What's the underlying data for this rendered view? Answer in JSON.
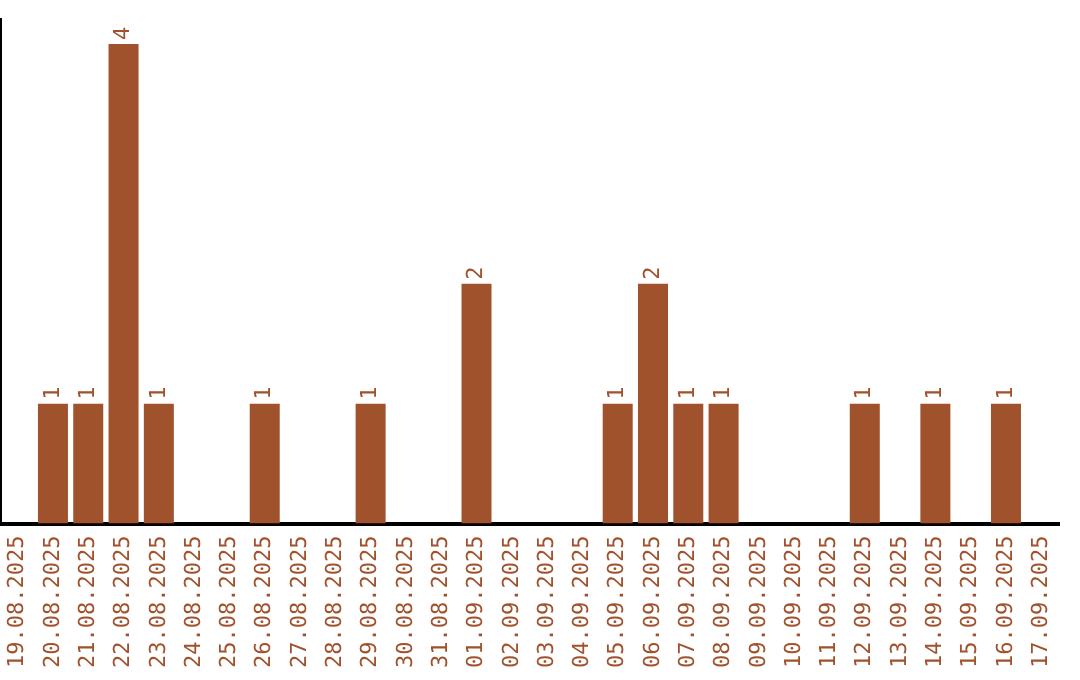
{
  "chart_data": {
    "type": "bar",
    "categories": [
      "19.08.2025",
      "20.08.2025",
      "21.08.2025",
      "22.08.2025",
      "23.08.2025",
      "24.08.2025",
      "25.08.2025",
      "26.08.2025",
      "27.08.2025",
      "28.08.2025",
      "29.08.2025",
      "30.08.2025",
      "31.08.2025",
      "01.09.2025",
      "02.09.2025",
      "03.09.2025",
      "04.09.2025",
      "05.09.2025",
      "06.09.2025",
      "07.09.2025",
      "08.09.2025",
      "09.09.2025",
      "10.09.2025",
      "11.09.2025",
      "12.09.2025",
      "13.09.2025",
      "14.09.2025",
      "15.09.2025",
      "16.09.2025",
      "17.09.2025"
    ],
    "values": [
      0,
      1,
      1,
      4,
      1,
      0,
      0,
      1,
      0,
      0,
      1,
      0,
      0,
      2,
      0,
      0,
      0,
      1,
      2,
      1,
      1,
      0,
      0,
      0,
      1,
      0,
      1,
      0,
      1,
      0
    ],
    "value_labels": [
      null,
      "1",
      "1",
      "4",
      "1",
      null,
      null,
      "1",
      null,
      null,
      "1",
      null,
      null,
      "2",
      null,
      null,
      null,
      "1",
      "2",
      "1",
      "1",
      null,
      null,
      null,
      "1",
      null,
      "1",
      null,
      "1",
      null
    ],
    "color": "#a0522d",
    "ylim": [
      0,
      4.2
    ],
    "tick_labels": "x",
    "grid": false,
    "legend": false
  }
}
